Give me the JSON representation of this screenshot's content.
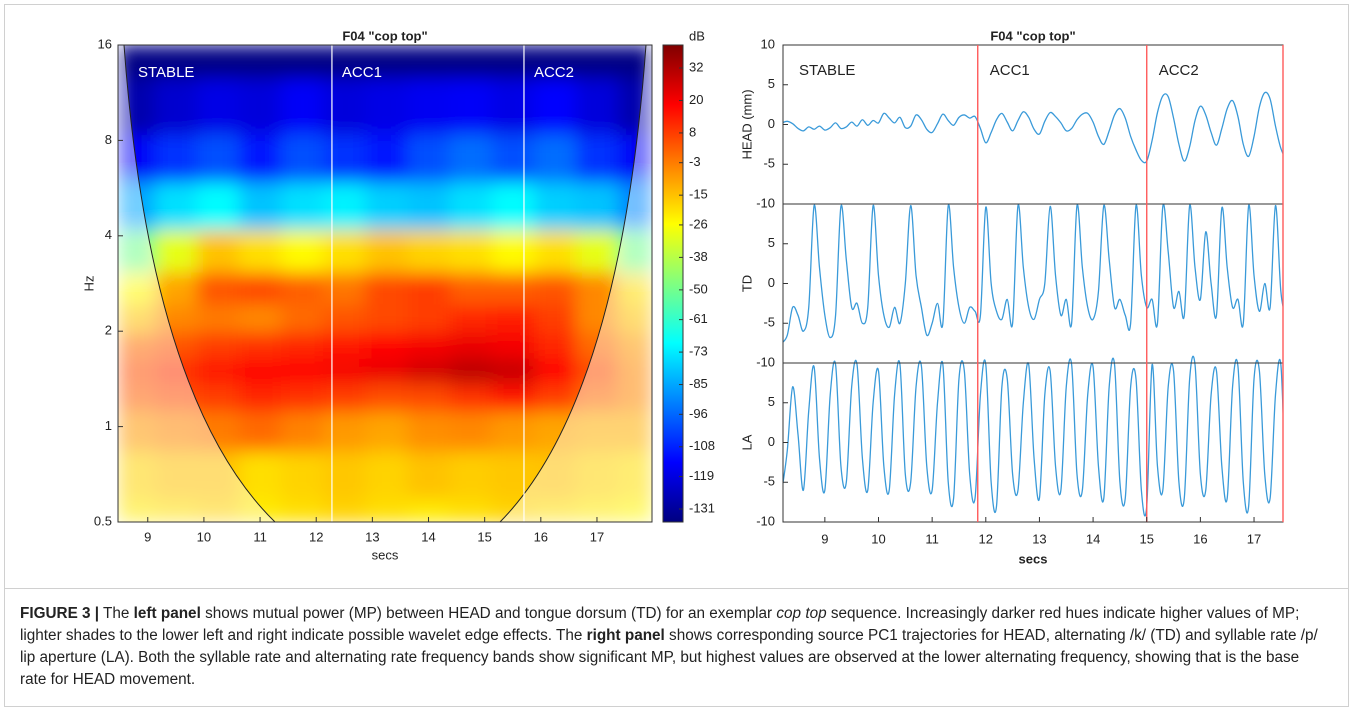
{
  "chart_data": [
    {
      "type": "heatmap",
      "title": "F04  \"cop top\"",
      "xlabel": "secs",
      "ylabel": "Hz",
      "colorbar_label": "dB",
      "xlim": [
        8.47,
        17.98
      ],
      "xticks": [
        9,
        10,
        11,
        12,
        13,
        14,
        15,
        16,
        17
      ],
      "ylim": [
        0.5,
        16
      ],
      "yscale": "log",
      "yticks": [
        0.5,
        1,
        2,
        4,
        8,
        16
      ],
      "clim": [
        -135.8,
        40.5
      ],
      "cticks": [
        32,
        20,
        8,
        -3,
        -15,
        -26,
        -38,
        -50,
        -61,
        -73,
        -85,
        -96,
        -108,
        -119,
        -131
      ],
      "boundaries": [
        12.28,
        15.7
      ],
      "boundary_color": "#ffffff",
      "annotations": [
        "STABLE",
        "ACC1",
        "ACC2"
      ],
      "x": [
        8.75,
        9.5,
        10.25,
        11,
        11.75,
        12.5,
        13.25,
        14,
        14.75,
        15.5,
        16.25,
        17,
        17.75
      ],
      "y": [
        0.5,
        0.7,
        1,
        1.25,
        1.5,
        1.8,
        2.2,
        2.7,
        3.5,
        5,
        7,
        10,
        16
      ],
      "values": [
        [
          -22,
          -20,
          -18,
          -22,
          -20,
          -18,
          -20,
          -22,
          -20,
          -18,
          -20,
          -22,
          -24
        ],
        [
          -18,
          -15,
          -15,
          -20,
          -18,
          -16,
          -18,
          -15,
          -17,
          -16,
          -15,
          -18,
          -20
        ],
        [
          -8,
          -5,
          -3,
          0,
          -4,
          -8,
          -10,
          -6,
          -5,
          -8,
          -10,
          -12,
          -12
        ],
        [
          2,
          5,
          8,
          12,
          10,
          8,
          5,
          6,
          10,
          15,
          8,
          0,
          -5
        ],
        [
          5,
          10,
          15,
          18,
          18,
          20,
          22,
          26,
          30,
          28,
          18,
          5,
          -5
        ],
        [
          0,
          4,
          8,
          10,
          12,
          15,
          18,
          20,
          22,
          20,
          12,
          0,
          -8
        ],
        [
          -15,
          -5,
          -3,
          -5,
          0,
          4,
          6,
          8,
          12,
          14,
          8,
          -5,
          -15
        ],
        [
          -25,
          -10,
          4,
          6,
          2,
          -2,
          6,
          8,
          2,
          2,
          4,
          -5,
          -20
        ],
        [
          -50,
          -30,
          -15,
          -20,
          -25,
          -20,
          -15,
          -18,
          -20,
          -25,
          -20,
          -30,
          -50
        ],
        [
          -85,
          -75,
          -70,
          -80,
          -75,
          -72,
          -78,
          -80,
          -75,
          -70,
          -78,
          -80,
          -90
        ],
        [
          -115,
          -105,
          -100,
          -110,
          -100,
          -105,
          -110,
          -100,
          -95,
          -100,
          -95,
          -105,
          -115
        ],
        [
          -128,
          -122,
          -118,
          -120,
          -115,
          -120,
          -118,
          -116,
          -115,
          -118,
          -114,
          -120,
          -128
        ],
        [
          -135,
          -135,
          -135,
          -135,
          -135,
          -135,
          -135,
          -135,
          -135,
          -135,
          -135,
          -135,
          -135
        ]
      ]
    },
    {
      "type": "line",
      "title": "F04  \"cop top\"",
      "xlabel": "secs",
      "color": "#3a9ad9",
      "xlim": [
        8.22,
        17.54
      ],
      "xticks": [
        9,
        10,
        11,
        12,
        13,
        14,
        15,
        16,
        17
      ],
      "boundaries": [
        11.85,
        15.0
      ],
      "boundary_color": "#ff5a5a",
      "annotations": [
        "STABLE",
        "ACC1",
        "ACC2"
      ],
      "x": [
        8.2,
        8.3,
        8.4,
        8.5,
        8.6,
        8.7,
        8.8,
        8.9,
        9,
        9.1,
        9.2,
        9.3,
        9.4,
        9.5,
        9.6,
        9.7,
        9.8,
        9.9,
        10,
        10.1,
        10.2,
        10.3,
        10.4,
        10.5,
        10.6,
        10.7,
        10.8,
        10.9,
        11,
        11.1,
        11.2,
        11.3,
        11.4,
        11.5,
        11.6,
        11.7,
        11.8,
        11.9,
        12,
        12.1,
        12.2,
        12.3,
        12.4,
        12.5,
        12.6,
        12.7,
        12.8,
        12.9,
        13,
        13.1,
        13.2,
        13.3,
        13.4,
        13.5,
        13.6,
        13.7,
        13.8,
        13.9,
        14,
        14.1,
        14.2,
        14.3,
        14.4,
        14.5,
        14.6,
        14.7,
        14.8,
        14.9,
        15,
        15.1,
        15.2,
        15.3,
        15.4,
        15.5,
        15.6,
        15.7,
        15.8,
        15.9,
        16,
        16.1,
        16.2,
        16.3,
        16.4,
        16.5,
        16.6,
        16.7,
        16.8,
        16.9,
        17,
        17.1,
        17.2,
        17.3,
        17.4,
        17.5,
        17.6,
        17.7
      ],
      "panels": [
        {
          "ylabel": "HEAD  (mm)",
          "ylim": [
            -10,
            10
          ],
          "yticks": [
            10,
            5,
            0,
            -5,
            -10
          ],
          "values": [
            0.2,
            0.4,
            0.1,
            -0.5,
            -0.8,
            -0.3,
            -0.6,
            -0.2,
            -0.7,
            -0.4,
            0.2,
            -0.5,
            -0.3,
            0.3,
            -0.2,
            0.6,
            -0.1,
            0.5,
            0.2,
            1.4,
            0.8,
            0.2,
            0.9,
            -0.4,
            -0.2,
            1.2,
            0.6,
            -0.6,
            -1.0,
            0.1,
            1.3,
            0.5,
            -0.1,
            0.9,
            1.2,
            0.8,
            1.0,
            -0.5,
            -2.3,
            -1.0,
            0.6,
            1.4,
            0.3,
            -0.8,
            0.5,
            1.6,
            0.9,
            -0.6,
            -1.2,
            0.4,
            1.5,
            1.0,
            0.2,
            -0.8,
            -0.5,
            0.6,
            1.3,
            1.4,
            0.3,
            -1.5,
            -2.5,
            -0.8,
            1.2,
            2.0,
            0.8,
            -1.5,
            -3.2,
            -4.5,
            -4.6,
            -2.0,
            1.5,
            3.6,
            3.5,
            0.8,
            -2.5,
            -4.6,
            -2.8,
            0.5,
            2.3,
            1.2,
            -1.0,
            -2.6,
            -0.5,
            2.0,
            3.0,
            1.0,
            -2.5,
            -4.0,
            -1.5,
            2.2,
            4.0,
            3.2,
            -0.2,
            -3.0,
            -4.2,
            -3.8
          ]
        },
        {
          "ylabel": "TD",
          "ylim": [
            -10,
            10
          ],
          "yticks": [
            5,
            0,
            -5,
            -10
          ],
          "values": [
            -7.5,
            -6.5,
            -3,
            -4,
            -6,
            -3,
            9.8,
            2,
            -4,
            -6.8,
            -4,
            9.7,
            3,
            -3,
            -2.5,
            -5,
            -3,
            9.8,
            1,
            -4,
            -5.5,
            -3,
            -5,
            0,
            9.8,
            1,
            -3,
            -6.5,
            -5,
            -2.5,
            -5,
            9.8,
            2,
            -3,
            -5,
            -3,
            -3.5,
            -4,
            9.6,
            0,
            -3.5,
            -4.5,
            -2,
            -5,
            9.8,
            2,
            -3,
            -4.5,
            -2,
            0,
            9.7,
            1,
            -4,
            -2,
            -5,
            9.8,
            2,
            -3,
            -4.5,
            -1,
            9.8,
            3,
            -3,
            -2,
            -4,
            -5,
            9.8,
            1,
            -3,
            -2,
            -5,
            9.7,
            4,
            -3,
            -1,
            -4,
            9.8,
            2,
            -2,
            6.5,
            0,
            -4,
            9.5,
            2,
            -3,
            -2,
            -5,
            9.8,
            1,
            -3.5,
            0,
            -3,
            9.8,
            -1,
            -4,
            -5
          ]
        },
        {
          "ylabel": "LA",
          "ylim": [
            -10,
            10
          ],
          "yticks": [
            5,
            0,
            -5,
            -10
          ],
          "values": [
            -6,
            -1,
            7,
            1,
            -6,
            4,
            9.5,
            -2,
            -6,
            6,
            9.8,
            -3,
            -5,
            7,
            9.8,
            -2,
            -6,
            5,
            9,
            -3,
            -6,
            6,
            9.8,
            -4,
            -5,
            7,
            9.6,
            -3,
            -6,
            5,
            9.8,
            -5,
            -7,
            8,
            9,
            -4,
            -7,
            6,
            9.8,
            -5,
            -8,
            7,
            8,
            -4,
            -6,
            5,
            9.8,
            -2,
            -7,
            6,
            9,
            -3,
            -6,
            7,
            9.8,
            -4,
            -6,
            6,
            9.5,
            -3,
            -7,
            7,
            9.8,
            -5,
            -7,
            7,
            8,
            -6,
            -8,
            9.8,
            -3,
            -6,
            7,
            9,
            -5,
            -7,
            8,
            9.8,
            -4,
            -6,
            6,
            9,
            -3,
            -7,
            7,
            9.6,
            -5,
            -8,
            8,
            9,
            -4,
            -7,
            6,
            9.8,
            -6,
            -7
          ]
        }
      ]
    }
  ],
  "caption": {
    "runs": [
      "FIGURE 3 |",
      " The ",
      "left panel",
      " shows mutual power (MP) between HEAD and tongue dorsum (TD) for an exemplar ",
      "cop top",
      " sequence. Increasingly darker red hues indicate higher values of MP; lighter shades to the lower left and right indicate possible wavelet edge effects. The ",
      "right panel",
      " shows corresponding source PC1 trajectories for HEAD, alternating /k/ (TD) and syllable rate /p/ lip aperture (LA). Both the syllable rate and alternating rate frequency bands show significant MP, but highest values are observed at the lower alternating frequency, showing that is the base rate for HEAD movement."
    ]
  }
}
